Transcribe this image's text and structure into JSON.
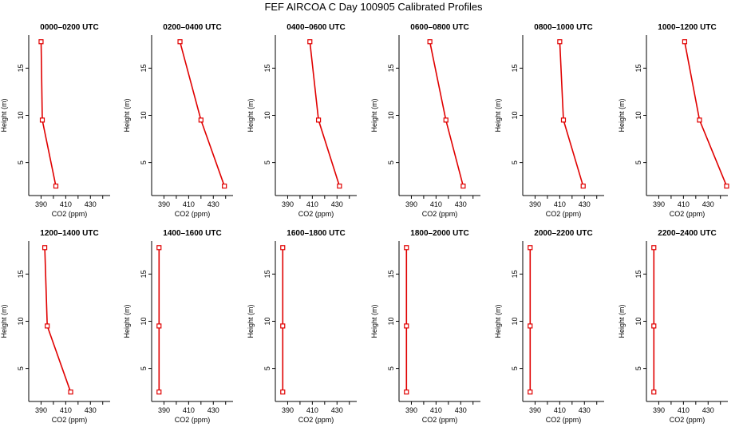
{
  "title": "FEF AIRCOA C  Day 100905  Calibrated Profiles",
  "colors": {
    "series": "#e00000",
    "axis": "#000000"
  },
  "chart_data": [
    {
      "type": "line",
      "title": "0000–0200 UTC",
      "xlabel": "CO2 (ppm)",
      "ylabel": "Height (m)",
      "xlim": [
        380,
        446
      ],
      "ylim": [
        1.5,
        18.5
      ],
      "xticks": [
        390,
        410,
        430
      ],
      "yticks": [
        5,
        10,
        15
      ],
      "series": [
        {
          "x": [
            402,
            391,
            390
          ],
          "y": [
            2.5,
            9.5,
            17.8
          ]
        }
      ]
    },
    {
      "type": "line",
      "title": "0200–0400 UTC",
      "xlabel": "CO2 (ppm)",
      "ylabel": "Height (m)",
      "xlim": [
        380,
        446
      ],
      "ylim": [
        1.5,
        18.5
      ],
      "xticks": [
        390,
        410,
        430
      ],
      "yticks": [
        5,
        10,
        15
      ],
      "series": [
        {
          "x": [
            439,
            420,
            403
          ],
          "y": [
            2.5,
            9.5,
            17.8
          ]
        }
      ]
    },
    {
      "type": "line",
      "title": "0400–0600 UTC",
      "xlabel": "CO2 (ppm)",
      "ylabel": "Height (m)",
      "xlim": [
        380,
        446
      ],
      "ylim": [
        1.5,
        18.5
      ],
      "xticks": [
        390,
        410,
        430
      ],
      "yticks": [
        5,
        10,
        15
      ],
      "series": [
        {
          "x": [
            432,
            415,
            408
          ],
          "y": [
            2.5,
            9.5,
            17.8
          ]
        }
      ]
    },
    {
      "type": "line",
      "title": "0600–0800 UTC",
      "xlabel": "CO2 (ppm)",
      "ylabel": "Height (m)",
      "xlim": [
        380,
        446
      ],
      "ylim": [
        1.5,
        18.5
      ],
      "xticks": [
        390,
        410,
        430
      ],
      "yticks": [
        5,
        10,
        15
      ],
      "series": [
        {
          "x": [
            432,
            418,
            405
          ],
          "y": [
            2.5,
            9.5,
            17.8
          ]
        }
      ]
    },
    {
      "type": "line",
      "title": "0800–1000 UTC",
      "xlabel": "CO2 (ppm)",
      "ylabel": "Height (m)",
      "xlim": [
        380,
        446
      ],
      "ylim": [
        1.5,
        18.5
      ],
      "xticks": [
        390,
        410,
        430
      ],
      "yticks": [
        5,
        10,
        15
      ],
      "series": [
        {
          "x": [
            429,
            413,
            410
          ],
          "y": [
            2.5,
            9.5,
            17.8
          ]
        }
      ]
    },
    {
      "type": "line",
      "title": "1000–1200 UTC",
      "xlabel": "CO2 (ppm)",
      "ylabel": "Height (m)",
      "xlim": [
        380,
        446
      ],
      "ylim": [
        1.5,
        18.5
      ],
      "xticks": [
        390,
        410,
        430
      ],
      "yticks": [
        5,
        10,
        15
      ],
      "series": [
        {
          "x": [
            445,
            423,
            411
          ],
          "y": [
            2.5,
            9.5,
            17.8
          ]
        }
      ]
    },
    {
      "type": "line",
      "title": "1200–1400 UTC",
      "xlabel": "CO2 (ppm)",
      "ylabel": "Height (m)",
      "xlim": [
        380,
        446
      ],
      "ylim": [
        1.5,
        18.5
      ],
      "xticks": [
        390,
        410,
        430
      ],
      "yticks": [
        5,
        10,
        15
      ],
      "series": [
        {
          "x": [
            414,
            395,
            393
          ],
          "y": [
            2.5,
            9.5,
            17.8
          ]
        }
      ]
    },
    {
      "type": "line",
      "title": "1400–1600 UTC",
      "xlabel": "CO2 (ppm)",
      "ylabel": "Height (m)",
      "xlim": [
        380,
        446
      ],
      "ylim": [
        1.5,
        18.5
      ],
      "xticks": [
        390,
        410,
        430
      ],
      "yticks": [
        5,
        10,
        15
      ],
      "series": [
        {
          "x": [
            386,
            386,
            386
          ],
          "y": [
            2.5,
            9.5,
            17.8
          ]
        }
      ]
    },
    {
      "type": "line",
      "title": "1600–1800 UTC",
      "xlabel": "CO2 (ppm)",
      "ylabel": "Height (m)",
      "xlim": [
        380,
        446
      ],
      "ylim": [
        1.5,
        18.5
      ],
      "xticks": [
        390,
        410,
        430
      ],
      "yticks": [
        5,
        10,
        15
      ],
      "series": [
        {
          "x": [
            386,
            386,
            386
          ],
          "y": [
            2.5,
            9.5,
            17.8
          ]
        }
      ]
    },
    {
      "type": "line",
      "title": "1800–2000 UTC",
      "xlabel": "CO2 (ppm)",
      "ylabel": "Height (m)",
      "xlim": [
        380,
        446
      ],
      "ylim": [
        1.5,
        18.5
      ],
      "xticks": [
        390,
        410,
        430
      ],
      "yticks": [
        5,
        10,
        15
      ],
      "series": [
        {
          "x": [
            386,
            386,
            386
          ],
          "y": [
            2.5,
            9.5,
            17.8
          ]
        }
      ]
    },
    {
      "type": "line",
      "title": "2000–2200 UTC",
      "xlabel": "CO2 (ppm)",
      "ylabel": "Height (m)",
      "xlim": [
        380,
        446
      ],
      "ylim": [
        1.5,
        18.5
      ],
      "xticks": [
        390,
        410,
        430
      ],
      "yticks": [
        5,
        10,
        15
      ],
      "series": [
        {
          "x": [
            386,
            386,
            386
          ],
          "y": [
            2.5,
            9.5,
            17.8
          ]
        }
      ]
    },
    {
      "type": "line",
      "title": "2200–2400 UTC",
      "xlabel": "CO2 (ppm)",
      "ylabel": "Height (m)",
      "xlim": [
        380,
        446
      ],
      "ylim": [
        1.5,
        18.5
      ],
      "xticks": [
        390,
        410,
        430
      ],
      "yticks": [
        5,
        10,
        15
      ],
      "series": [
        {
          "x": [
            386,
            386,
            386
          ],
          "y": [
            2.5,
            9.5,
            17.8
          ]
        }
      ]
    }
  ]
}
